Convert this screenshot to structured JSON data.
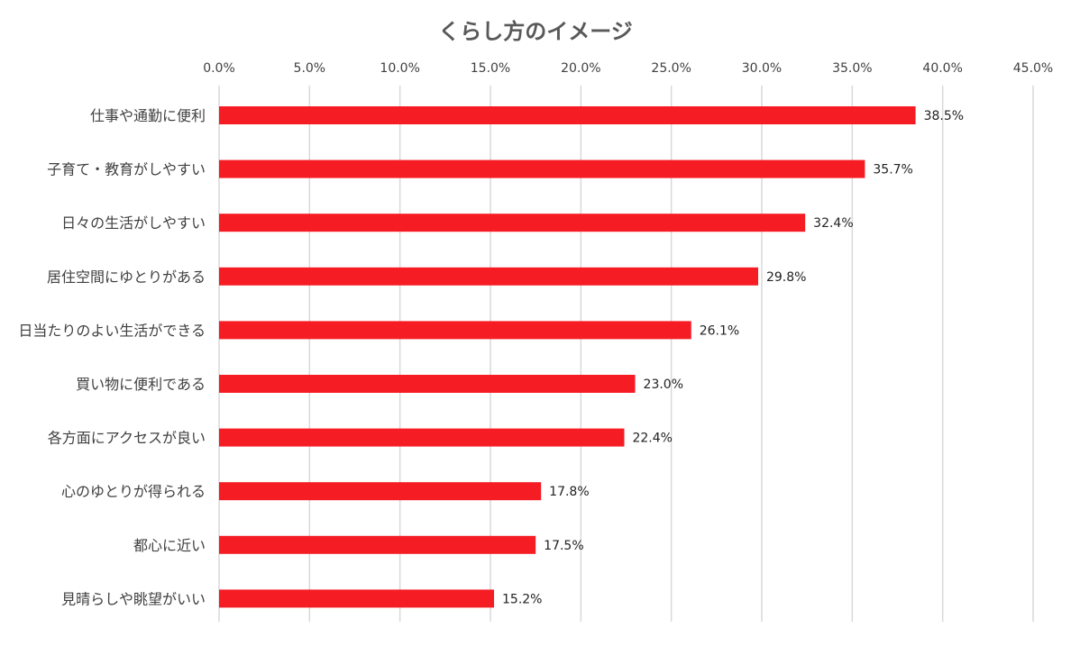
{
  "chart_data": {
    "type": "bar",
    "orientation": "horizontal",
    "title": "くらし方のイメージ",
    "categories": [
      "仕事や通勤に便利",
      "子育て・教育がしやすい",
      "日々の生活がしやすい",
      "居住空間にゆとりがある",
      "日当たりのよい生活ができる",
      "買い物に便利である",
      "各方面にアクセスが良い",
      "心のゆとりが得られる",
      "都心に近い",
      "見晴らしや眺望がいい"
    ],
    "values": [
      38.5,
      35.7,
      32.4,
      29.8,
      26.1,
      23.0,
      22.4,
      17.8,
      17.5,
      15.2
    ],
    "value_labels": [
      "38.5%",
      "35.7%",
      "32.4%",
      "29.8%",
      "26.1%",
      "23.0%",
      "22.4%",
      "17.8%",
      "17.5%",
      "15.2%"
    ],
    "xlim": [
      0,
      45
    ],
    "x_ticks": [
      0,
      5,
      10,
      15,
      20,
      25,
      30,
      35,
      40,
      45
    ],
    "x_tick_labels": [
      "0.0%",
      "5.0%",
      "10.0%",
      "15.0%",
      "20.0%",
      "25.0%",
      "30.0%",
      "35.0%",
      "40.0%",
      "45.0%"
    ],
    "x_axis_position": "top",
    "grid": true,
    "legend": false,
    "xlabel": "",
    "ylabel": ""
  },
  "colors": {
    "bar": "#F51C24",
    "grid": "#D9D9D9",
    "text": "#404040",
    "title": "#595959"
  }
}
